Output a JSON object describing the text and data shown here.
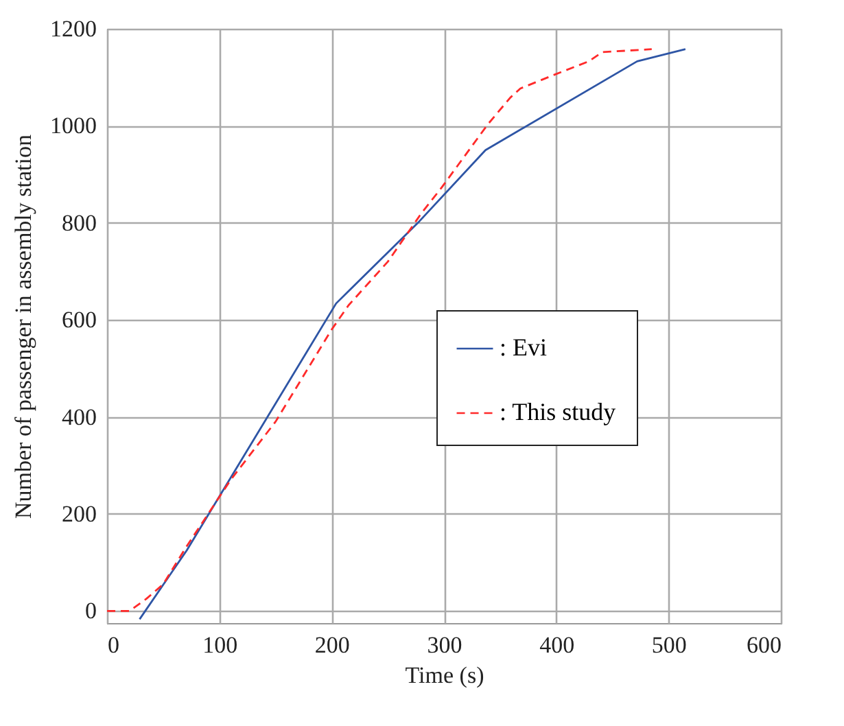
{
  "chart_data": {
    "type": "line",
    "xlabel": "Time (s)",
    "ylabel": "Number of passenger in assembly station",
    "xlim": [
      0,
      600
    ],
    "xticks": [
      0,
      100,
      200,
      300,
      400,
      500,
      600
    ],
    "ylim": [
      -25,
      1200
    ],
    "yticks": [
      0,
      200,
      400,
      600,
      800,
      1000,
      1200
    ],
    "grid": true,
    "legend": "right",
    "marker": "none",
    "series": [
      {
        "name": ": Evi",
        "color": "#2e55a5",
        "line_style": "solid",
        "x": [
          29,
          71,
          204,
          278,
          337,
          472,
          515
        ],
        "values": [
          -17,
          125,
          634,
          803,
          950,
          1133,
          1158
        ]
      },
      {
        "name": ": This study",
        "color": "#ff2a2a",
        "line_style": "dashed",
        "x": [
          0,
          20,
          35,
          50,
          70,
          90,
          110,
          150,
          200,
          215,
          250,
          280,
          298,
          339,
          359,
          368,
          398,
          429,
          441,
          485
        ],
        "values": [
          0,
          0,
          25,
          55,
          130,
          200,
          270,
          390,
          580,
          630,
          720,
          820,
          873,
          1003,
          1058,
          1077,
          1105,
          1133,
          1152,
          1158
        ]
      }
    ]
  }
}
